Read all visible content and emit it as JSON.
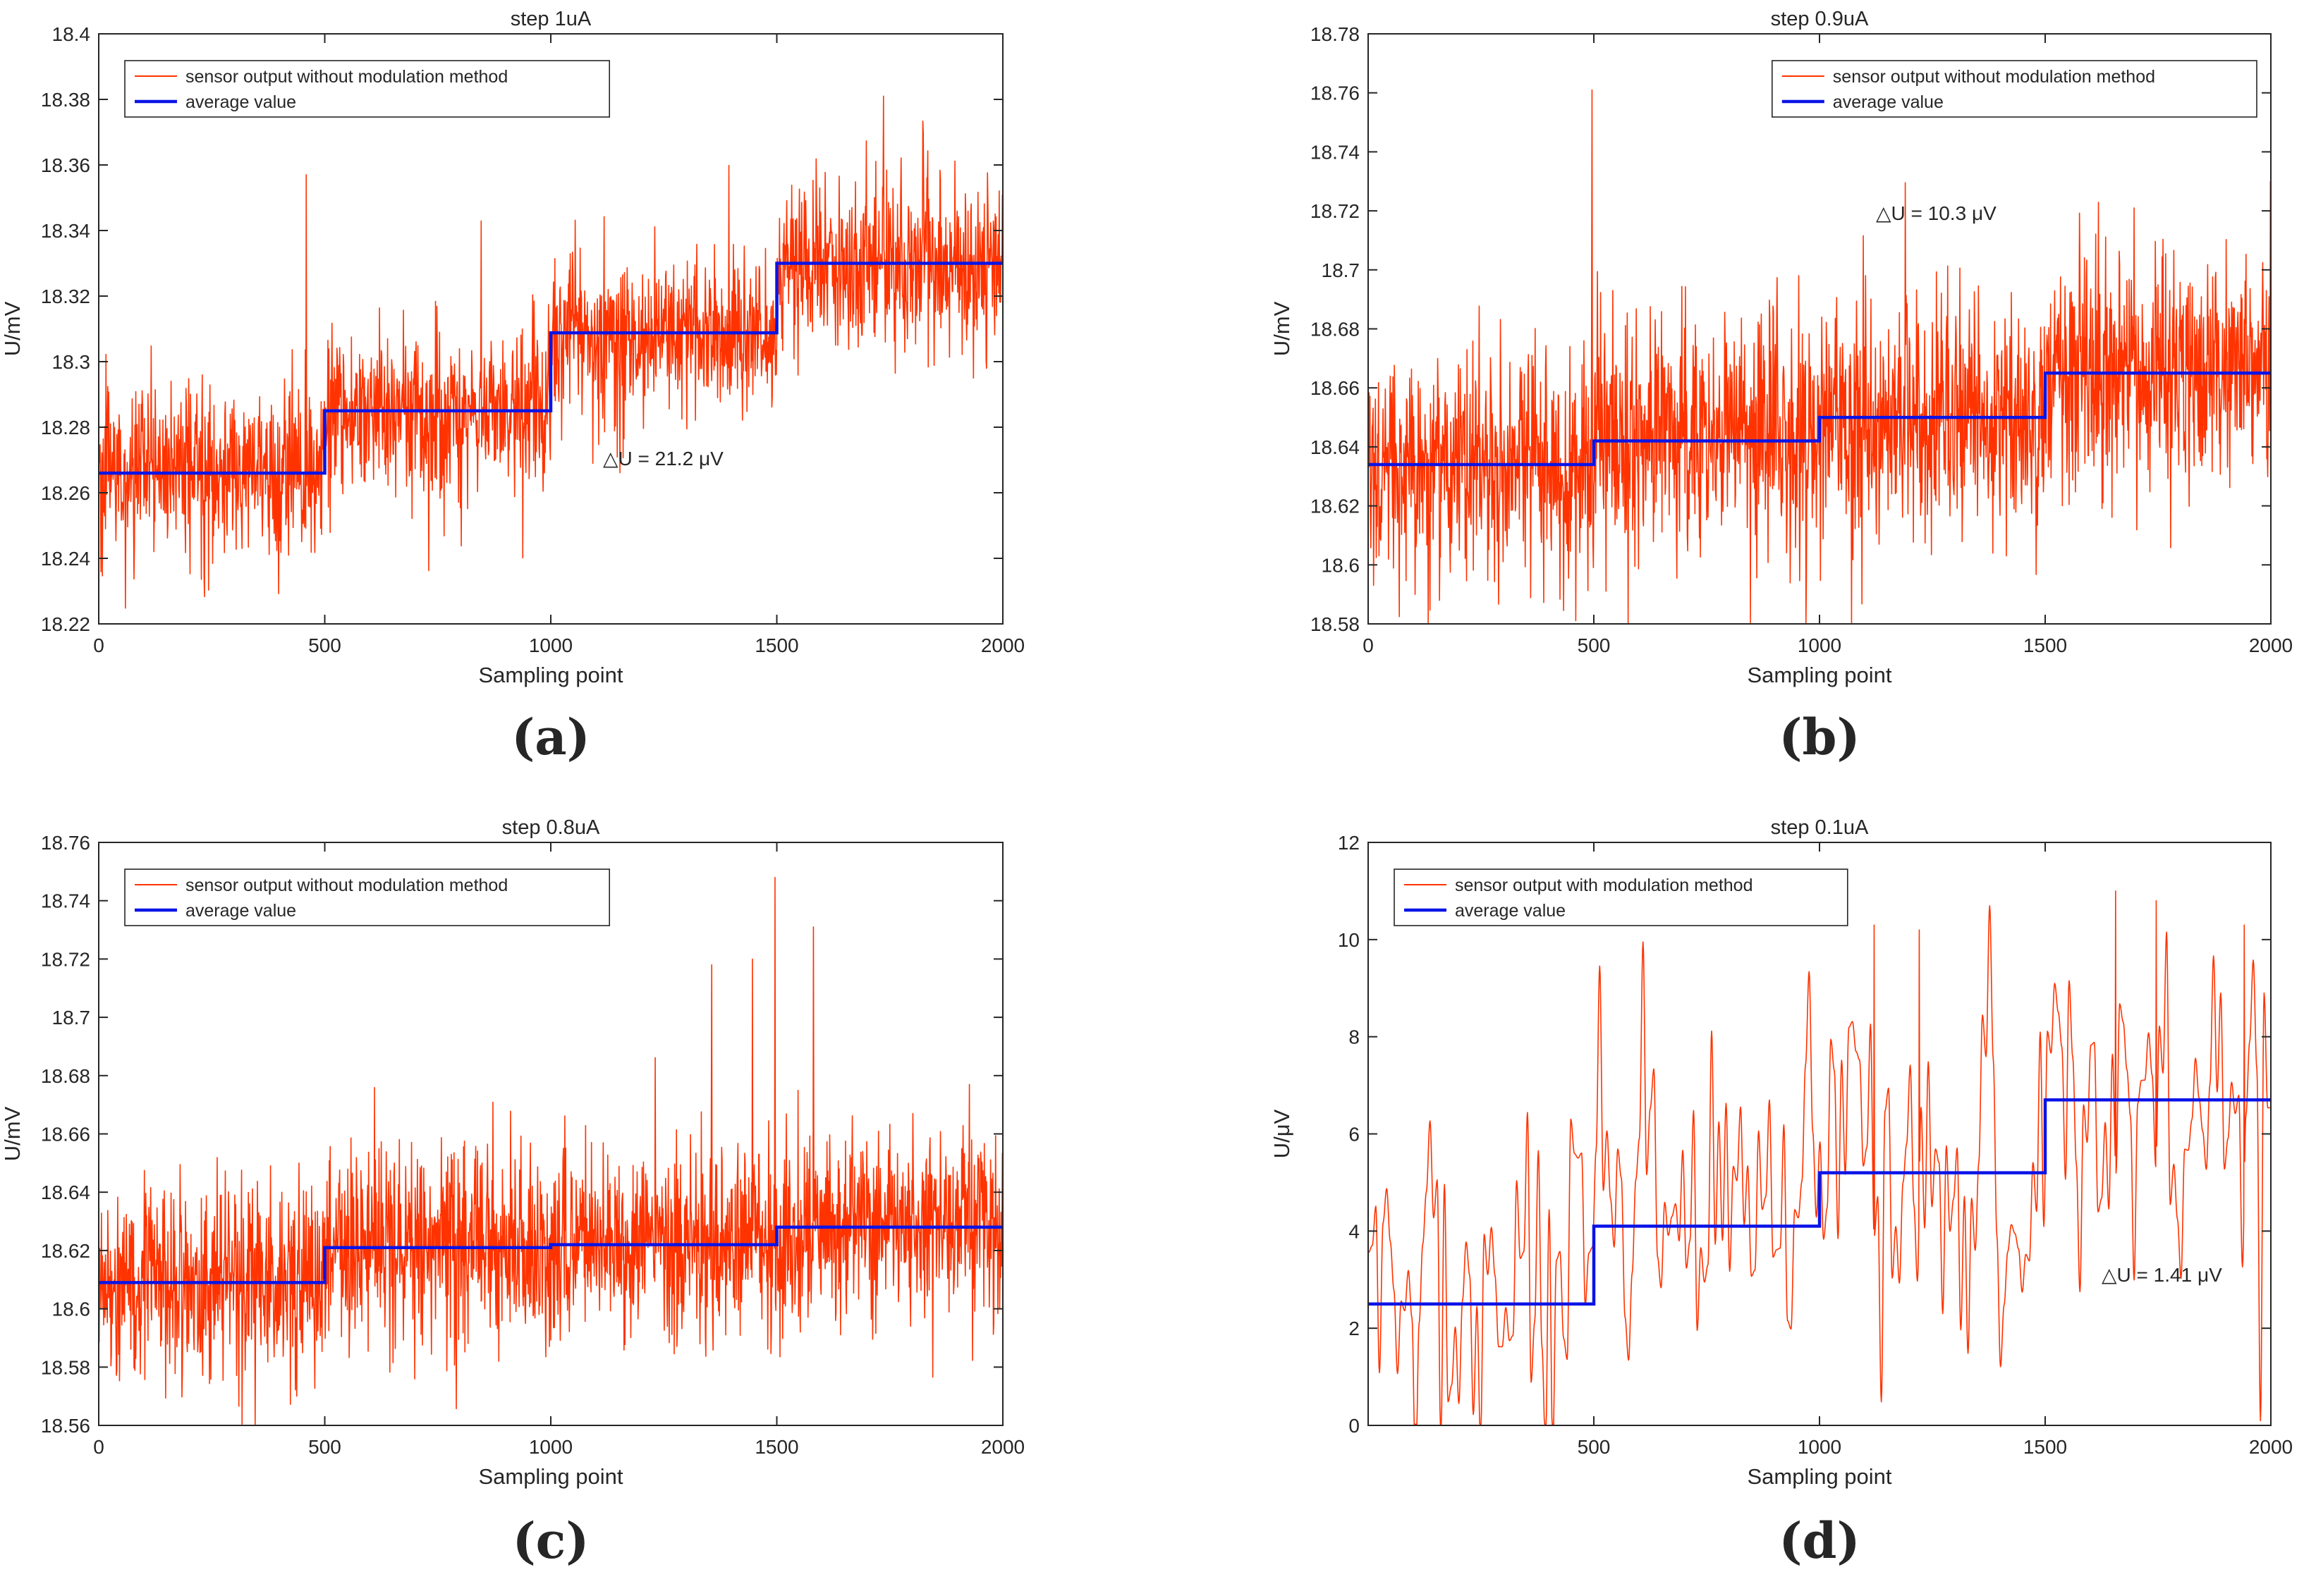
{
  "colors": {
    "signal": "#ff3300",
    "average": "#0a14e6",
    "axis": "#262626",
    "background": "#ffffff"
  },
  "chart_data": [
    {
      "id": "a",
      "type": "line",
      "panel_label": "(a)",
      "title": "step 1uA",
      "xlabel": "Sampling point",
      "ylabel": "U/mV",
      "xlim": [
        0,
        2000
      ],
      "ylim": [
        18.22,
        18.4
      ],
      "xticks": [
        0,
        500,
        1000,
        1500,
        2000
      ],
      "xtick_labels": [
        "0",
        "500",
        "1000",
        "1500",
        "2000"
      ],
      "yticks": [
        18.22,
        18.24,
        18.26,
        18.28,
        18.3,
        18.32,
        18.34,
        18.36,
        18.38,
        18.4
      ],
      "ytick_labels": [
        "18.22",
        "18.24",
        "18.26",
        "18.28",
        "18.3",
        "18.32",
        "18.34",
        "18.36",
        "18.38",
        "18.4"
      ],
      "legend_position": "top-left",
      "annotation": "△U = 21.2 μV",
      "series": [
        {
          "name": "sensor output without modulation method",
          "kind": "noisy-signal",
          "levels": [
            18.266,
            18.285,
            18.3088,
            18.33
          ],
          "noise_std": 0.0125,
          "spikes": [
            [
              458,
              18.357
            ],
            [
              1735,
              18.381
            ]
          ]
        },
        {
          "name": "average value",
          "kind": "step-average",
          "segments": [
            {
              "x": [
                0,
                500
              ],
              "y": 18.266
            },
            {
              "x": [
                500,
                1000
              ],
              "y": 18.285
            },
            {
              "x": [
                1000,
                1500
              ],
              "y": 18.3088
            },
            {
              "x": [
                1500,
                2000
              ],
              "y": 18.33
            }
          ]
        }
      ]
    },
    {
      "id": "b",
      "type": "line",
      "panel_label": "(b)",
      "title": "step 0.9uA",
      "xlabel": "Sampling point",
      "ylabel": "U/mV",
      "xlim": [
        0,
        2000
      ],
      "ylim": [
        18.58,
        18.78
      ],
      "xticks": [
        0,
        500,
        1000,
        1500,
        2000
      ],
      "xtick_labels": [
        "0",
        "500",
        "1000",
        "1500",
        "2000"
      ],
      "yticks": [
        18.58,
        18.6,
        18.62,
        18.64,
        18.66,
        18.68,
        18.7,
        18.72,
        18.74,
        18.76,
        18.78
      ],
      "ytick_labels": [
        "18.58",
        "18.6",
        "18.62",
        "18.64",
        "18.66",
        "18.68",
        "18.7",
        "18.72",
        "18.74",
        "18.76",
        "18.78"
      ],
      "legend_position": "top-right",
      "annotation": "△U = 10.3 μV",
      "series": [
        {
          "name": "sensor output without modulation method",
          "kind": "noisy-signal",
          "levels": [
            18.634,
            18.642,
            18.65,
            18.665
          ],
          "noise_std": 0.0195,
          "spikes": [
            [
              495,
              18.761
            ],
            [
              1696,
              18.721
            ],
            [
              1998,
              18.73
            ]
          ]
        },
        {
          "name": "average value",
          "kind": "step-average",
          "segments": [
            {
              "x": [
                0,
                500
              ],
              "y": 18.634
            },
            {
              "x": [
                500,
                1000
              ],
              "y": 18.642
            },
            {
              "x": [
                1000,
                1500
              ],
              "y": 18.65
            },
            {
              "x": [
                1500,
                2000
              ],
              "y": 18.665
            }
          ]
        }
      ]
    },
    {
      "id": "c",
      "type": "line",
      "panel_label": "(c)",
      "title": "step 0.8uA",
      "xlabel": "Sampling point",
      "ylabel": "U/mV",
      "xlim": [
        0,
        2000
      ],
      "ylim": [
        18.56,
        18.76
      ],
      "xticks": [
        0,
        500,
        1000,
        1500,
        2000
      ],
      "xtick_labels": [
        "0",
        "500",
        "1000",
        "1500",
        "2000"
      ],
      "yticks": [
        18.56,
        18.58,
        18.6,
        18.62,
        18.64,
        18.66,
        18.68,
        18.7,
        18.72,
        18.74,
        18.76
      ],
      "ytick_labels": [
        "18.56",
        "18.58",
        "18.6",
        "18.62",
        "18.64",
        "18.66",
        "18.68",
        "18.7",
        "18.72",
        "18.74",
        "18.76"
      ],
      "legend_position": "top-left",
      "annotation": "",
      "series": [
        {
          "name": "sensor output without modulation method",
          "kind": "noisy-signal",
          "levels": [
            18.609,
            18.621,
            18.622,
            18.628
          ],
          "noise_std": 0.0165,
          "spikes": [
            [
              1495,
              18.748
            ],
            [
              1580,
              18.731
            ],
            [
              1355,
              18.718
            ],
            [
              1445,
              18.72
            ]
          ]
        },
        {
          "name": "average value",
          "kind": "step-average",
          "segments": [
            {
              "x": [
                0,
                500
              ],
              "y": 18.609
            },
            {
              "x": [
                500,
                1000
              ],
              "y": 18.621
            },
            {
              "x": [
                1000,
                1500
              ],
              "y": 18.622
            },
            {
              "x": [
                1500,
                2000
              ],
              "y": 18.628
            }
          ]
        }
      ]
    },
    {
      "id": "d",
      "type": "line",
      "panel_label": "(d)",
      "title": "step 0.1uA",
      "xlabel": "Sampling point",
      "ylabel": "U/μV",
      "xlim": [
        0,
        2000
      ],
      "ylim": [
        0,
        12
      ],
      "xticks": [
        500,
        1000,
        1500,
        2000
      ],
      "xtick_labels": [
        "500",
        "1000",
        "1500",
        "2000"
      ],
      "yticks": [
        0,
        2,
        4,
        6,
        8,
        10,
        12
      ],
      "ytick_labels": [
        "0",
        "2",
        "4",
        "6",
        "8",
        "10",
        "12"
      ],
      "legend_position": "top-left",
      "annotation": "△U = 1.41 μV",
      "series": [
        {
          "name": "sensor output with modulation method",
          "kind": "smooth-signal",
          "levels": [
            2.5,
            4.1,
            5.2,
            6.7
          ],
          "noise_std": 2.0,
          "spikes": [
            [
              1120,
              10.3
            ],
            [
              1220,
              10.2
            ],
            [
              1655,
              11.0
            ],
            [
              1745,
              10.8
            ],
            [
              1940,
              10.3
            ]
          ]
        },
        {
          "name": "average value",
          "kind": "step-average",
          "segments": [
            {
              "x": [
                0,
                500
              ],
              "y": 2.5
            },
            {
              "x": [
                500,
                1000
              ],
              "y": 4.1
            },
            {
              "x": [
                1000,
                1500
              ],
              "y": 5.2
            },
            {
              "x": [
                1500,
                2000
              ],
              "y": 6.7
            }
          ]
        }
      ]
    }
  ]
}
